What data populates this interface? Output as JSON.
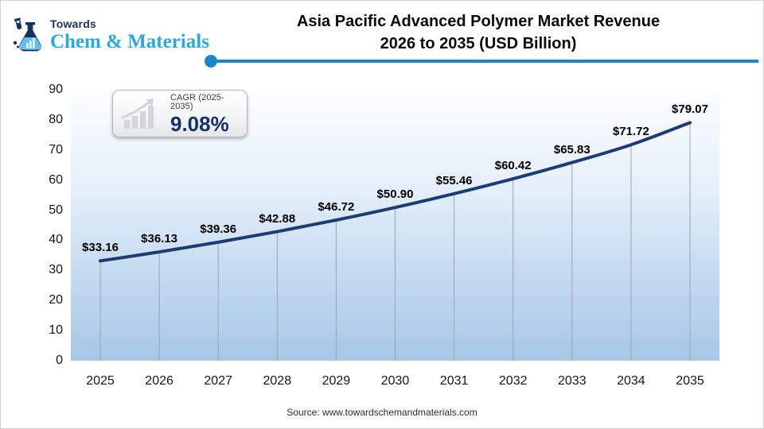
{
  "logo": {
    "brand_top": "Towards",
    "brand_name": "Chem & Materials",
    "navy": "#1b2f5e",
    "light_blue": "#29a9e0"
  },
  "header": {
    "title_line1": "Asia Pacific Advanced Polymer Market Revenue",
    "title_line2": "2026 to 2035 (USD Billion)",
    "rule_color": "#1a87c9"
  },
  "cagr_badge": {
    "label": "CAGR (2025-2035)",
    "value": "9.08%",
    "value_color": "#16306e",
    "icon": "growth-bars-icon"
  },
  "chart_data": {
    "type": "line",
    "title": "Asia Pacific Advanced Polymer Market Revenue 2026 to 2035 (USD Billion)",
    "x": [
      2025,
      2026,
      2027,
      2028,
      2029,
      2030,
      2031,
      2032,
      2033,
      2034,
      2035
    ],
    "values": [
      33.16,
      36.13,
      39.36,
      42.88,
      46.72,
      50.9,
      55.46,
      60.42,
      65.83,
      71.72,
      79.07
    ],
    "point_labels": [
      "$33.16",
      "$36.13",
      "$39.36",
      "$42.88",
      "$46.72",
      "$50.90",
      "$55.46",
      "$60.42",
      "$65.83",
      "$71.72",
      "$79.07"
    ],
    "xlabel": "",
    "ylabel": "",
    "ylim": [
      0,
      90
    ],
    "yticks": [
      0,
      10,
      20,
      30,
      40,
      50,
      60,
      70,
      80,
      90
    ],
    "legend": "none",
    "grid": "vertical drop lines only",
    "line_color": "#1e3c72",
    "dropline_color": "#9aa4b2",
    "area_gradient_top": "#fdfeff",
    "area_gradient_bottom": "#a6c7e7"
  },
  "footer": {
    "source": "Source: www.towardschemandmaterials.com"
  }
}
